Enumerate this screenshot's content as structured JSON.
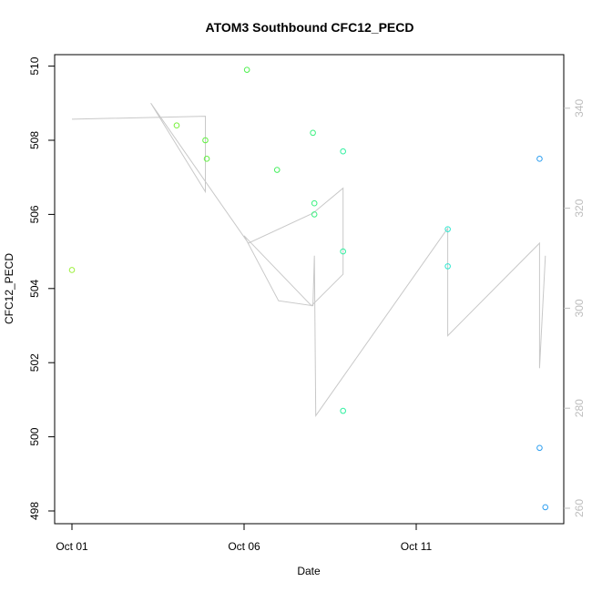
{
  "chart_data": {
    "type": "scatter",
    "title": "ATOM3 Southbound CFC12_PECD",
    "xlabel": "Date",
    "ylabel": "CFC12_PECD",
    "xlim": [
      "2016-10-01",
      "2016-10-15"
    ],
    "ylim": [
      498,
      510
    ],
    "y2lim": [
      260,
      345
    ],
    "x_ticks": [
      {
        "value": "2016-10-01",
        "label": "Oct 01"
      },
      {
        "value": "2016-10-06",
        "label": "Oct 06"
      },
      {
        "value": "2016-10-11",
        "label": "Oct 11"
      }
    ],
    "y_ticks": [
      498,
      500,
      502,
      504,
      506,
      508,
      510
    ],
    "y2_ticks": [
      260,
      280,
      300,
      320,
      340
    ],
    "points": [
      {
        "x": "2016-10-01T00:00",
        "y": 504.5,
        "color": "#9cf03c"
      },
      {
        "x": "2016-10-04T01:00",
        "y": 508.4,
        "color": "#78f03c"
      },
      {
        "x": "2016-10-04T21:00",
        "y": 508.0,
        "color": "#60f040"
      },
      {
        "x": "2016-10-04T22:00",
        "y": 507.5,
        "color": "#60f040"
      },
      {
        "x": "2016-10-06T02:00",
        "y": 509.9,
        "color": "#50f050"
      },
      {
        "x": "2016-10-06T23:00",
        "y": 507.2,
        "color": "#48f060"
      },
      {
        "x": "2016-10-08T00:00",
        "y": 508.2,
        "color": "#3cf080"
      },
      {
        "x": "2016-10-08T01:00",
        "y": 506.3,
        "color": "#3cf080"
      },
      {
        "x": "2016-10-08T01:00",
        "y": 506.0,
        "color": "#3cf080"
      },
      {
        "x": "2016-10-08T21:00",
        "y": 507.7,
        "color": "#30f0a0"
      },
      {
        "x": "2016-10-08T21:00",
        "y": 505.0,
        "color": "#30f0a0"
      },
      {
        "x": "2016-10-08T21:00",
        "y": 500.7,
        "color": "#30f0a0"
      },
      {
        "x": "2016-10-11T22:00",
        "y": 505.6,
        "color": "#30e8d0"
      },
      {
        "x": "2016-10-11T22:00",
        "y": 504.6,
        "color": "#30e8d0"
      },
      {
        "x": "2016-10-14T14:00",
        "y": 507.5,
        "color": "#2c9ef0"
      },
      {
        "x": "2016-10-14T14:00",
        "y": 499.7,
        "color": "#2c9ef0"
      },
      {
        "x": "2016-10-14T18:00",
        "y": 498.1,
        "color": "#2c9ef0"
      }
    ],
    "line_series": {
      "color": "#c8c8c8",
      "axis": "right",
      "values": [
        {
          "x": "2016-10-01T00:00",
          "y": 337.8
        },
        {
          "x": "2016-10-04T21:00",
          "y": 338.4
        },
        {
          "x": "2016-10-04T21:00",
          "y": 323.3
        },
        {
          "x": "2016-10-03T07:00",
          "y": 341.0
        },
        {
          "x": "2016-10-06T03:00",
          "y": 313.0
        },
        {
          "x": "2016-10-08T00:00",
          "y": 319.0
        },
        {
          "x": "2016-10-08T21:00",
          "y": 324.0
        },
        {
          "x": "2016-10-08T21:00",
          "y": 313.5
        },
        {
          "x": "2016-10-08T21:00",
          "y": 306.8
        },
        {
          "x": "2016-10-07T23:00",
          "y": 300.5
        },
        {
          "x": "2016-10-06T00:00",
          "y": 314.5
        },
        {
          "x": "2016-10-07T00:00",
          "y": 301.5
        },
        {
          "x": "2016-10-08T00:00",
          "y": 300.5
        },
        {
          "x": "2016-10-08T01:00",
          "y": 310.5
        },
        {
          "x": "2016-10-08T02:00",
          "y": 278.5
        },
        {
          "x": "2016-10-11T22:00",
          "y": 316.0
        },
        {
          "x": "2016-10-11T22:00",
          "y": 294.5
        },
        {
          "x": "2016-10-14T14:00",
          "y": 313.0
        },
        {
          "x": "2016-10-14T14:00",
          "y": 288.0
        },
        {
          "x": "2016-10-14T18:00",
          "y": 310.5
        }
      ]
    }
  }
}
